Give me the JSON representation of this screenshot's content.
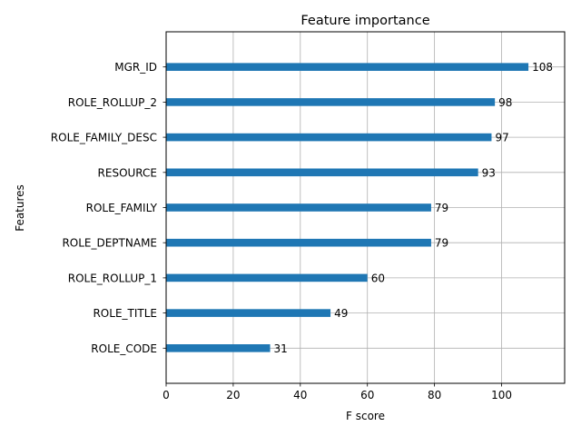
{
  "chart_data": {
    "type": "bar",
    "orientation": "horizontal",
    "title": "Feature importance",
    "xlabel": "F score",
    "ylabel": "Features",
    "xlim": [
      0,
      118.8
    ],
    "xticks": [
      0,
      20,
      40,
      60,
      80,
      100
    ],
    "grid": true,
    "bar_color": "#1f77b4",
    "categories": [
      "ROLE_CODE",
      "ROLE_TITLE",
      "ROLE_ROLLUP_1",
      "ROLE_DEPTNAME",
      "ROLE_FAMILY",
      "RESOURCE",
      "ROLE_FAMILY_DESC",
      "ROLE_ROLLUP_2",
      "MGR_ID"
    ],
    "values": [
      31,
      49,
      60,
      79,
      79,
      93,
      97,
      98,
      108
    ]
  }
}
